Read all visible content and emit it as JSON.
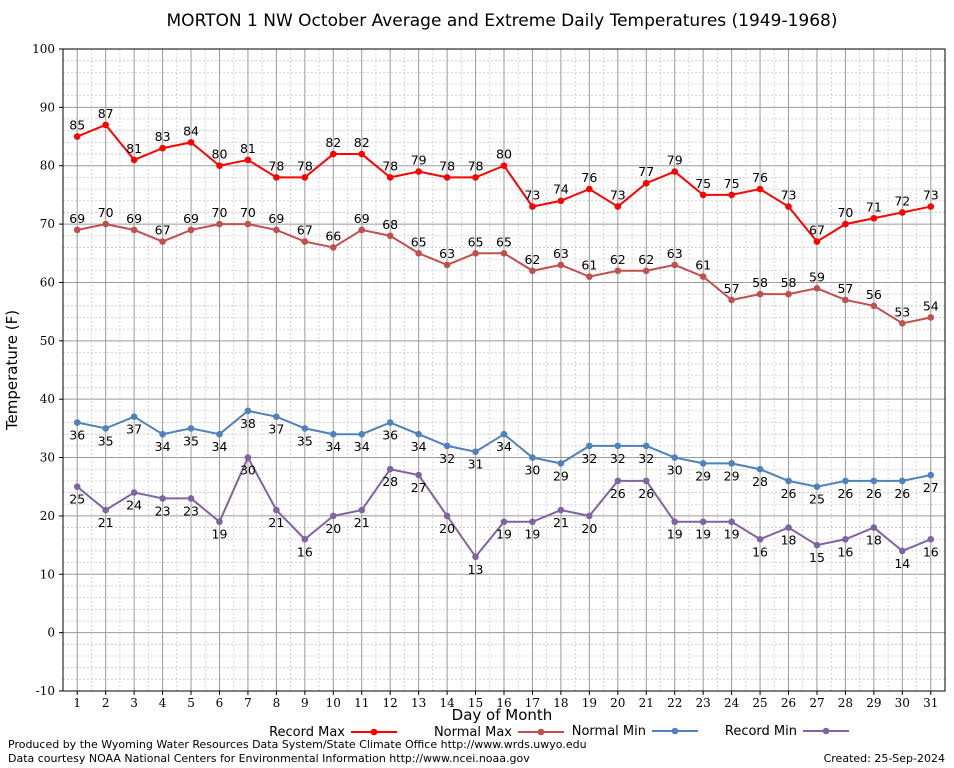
{
  "chart_data": {
    "type": "line",
    "title": "MORTON 1 NW October Average and Extreme Daily Temperatures (1949-1968)",
    "xlabel": "Day of Month",
    "ylabel": "Temperature (F)",
    "ylim": [
      -10,
      100
    ],
    "yticks": [
      "-10",
      "0",
      "10",
      "20",
      "30",
      "40",
      "50",
      "60",
      "70",
      "80",
      "90",
      "100"
    ],
    "categories": [
      "1",
      "2",
      "3",
      "4",
      "5",
      "6",
      "7",
      "8",
      "9",
      "10",
      "11",
      "12",
      "13",
      "14",
      "15",
      "16",
      "17",
      "18",
      "19",
      "20",
      "21",
      "22",
      "23",
      "24",
      "25",
      "26",
      "27",
      "28",
      "29",
      "30",
      "31"
    ],
    "grid": true,
    "legend_position": "bottom",
    "series": [
      {
        "name": "Record Max",
        "color": "#ff0000",
        "label_position": "above",
        "values": [
          85,
          87,
          81,
          83,
          84,
          80,
          81,
          78,
          78,
          82,
          82,
          78,
          79,
          78,
          78,
          80,
          73,
          74,
          76,
          73,
          77,
          79,
          75,
          75,
          76,
          73,
          67,
          70,
          71,
          72,
          73
        ]
      },
      {
        "name": "Normal Max",
        "color": "#c0504d",
        "label_position": "above",
        "values": [
          69,
          70,
          69,
          67,
          69,
          70,
          70,
          69,
          67,
          66,
          69,
          68,
          65,
          63,
          65,
          65,
          62,
          63,
          61,
          62,
          62,
          63,
          61,
          57,
          58,
          58,
          59,
          57,
          56,
          53,
          54
        ]
      },
      {
        "name": "Normal Min",
        "color": "#4f81bd",
        "label_position": "below",
        "values": [
          36,
          35,
          37,
          34,
          35,
          34,
          38,
          37,
          35,
          34,
          34,
          36,
          34,
          32,
          31,
          34,
          30,
          29,
          32,
          32,
          32,
          30,
          29,
          29,
          28,
          26,
          25,
          26,
          26,
          26,
          27
        ]
      },
      {
        "name": "Record Min",
        "color": "#8064a2",
        "label_position": "below",
        "values": [
          25,
          21,
          24,
          23,
          23,
          19,
          30,
          21,
          16,
          20,
          21,
          28,
          27,
          20,
          13,
          19,
          19,
          21,
          20,
          26,
          26,
          19,
          19,
          19,
          16,
          18,
          15,
          16,
          18,
          14,
          16
        ]
      }
    ]
  },
  "footer": {
    "produced_by": "Produced by the Wyoming Water Resources Data System/State Climate Office http://www.wrds.uwyo.edu",
    "courtesy": "Data courtesy NOAA National Centers for Environmental Information http://www.ncei.noaa.gov",
    "created": "Created:  25-Sep-2024"
  }
}
